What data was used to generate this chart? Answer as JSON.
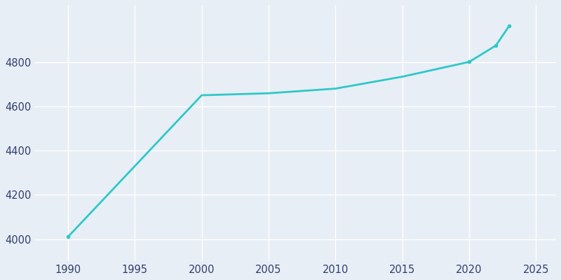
{
  "years": [
    1990,
    2000,
    2005,
    2010,
    2015,
    2020,
    2022,
    2023
  ],
  "population": [
    4010,
    4651,
    4660,
    4681,
    4735,
    4802,
    4876,
    4966
  ],
  "line_color": "#2ec8c8",
  "marker_years": [
    1990,
    2020,
    2022,
    2023
  ],
  "bg_color": "#e8eef5",
  "grid_color": "#ffffff",
  "text_color": "#2e3f6e",
  "xlim": [
    1987.5,
    2026.5
  ],
  "ylim": [
    3900,
    5060
  ],
  "xticks": [
    1990,
    1995,
    2000,
    2005,
    2010,
    2015,
    2020,
    2025
  ],
  "yticks": [
    4000,
    4200,
    4400,
    4600,
    4800
  ],
  "line_width": 2.0,
  "marker_size": 4
}
